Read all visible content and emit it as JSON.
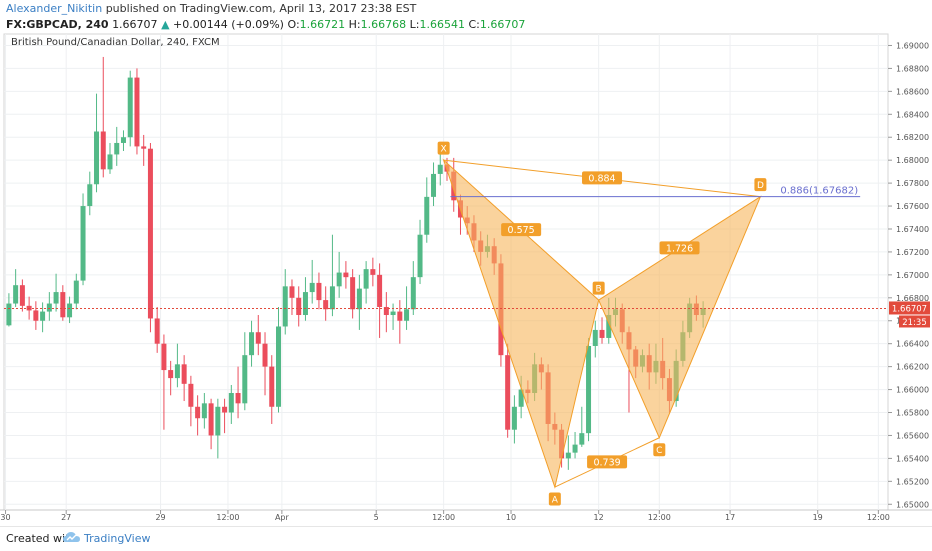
{
  "header": {
    "author": "Alexander_Nikitin",
    "published_text": "published on TradingView.com, April 13, 2017 23:38 EST",
    "symbol": "FX:GBPCAD, 240",
    "last": "1.66707",
    "change_arrow": "▲",
    "change": "+0.00144 (+0.09%)",
    "o_label": "O:",
    "o_value": "1.66721",
    "h_label": "H:",
    "h_value": "1.66768",
    "l_label": "L:",
    "l_value": "1.66541",
    "c_label": "C:",
    "c_value": "1.66707"
  },
  "footer": {
    "created_with": "Created with",
    "brand": "TradingView"
  },
  "colors": {
    "up": "#53b987",
    "down": "#eb4d5c",
    "pattern_fill": "#f7b55b",
    "pattern_stroke": "#f29f2a",
    "level_line": "#6a6fcf",
    "price_line": "#e24a3b"
  },
  "chart_data": {
    "type": "candlestick",
    "title": "British Pound/Canadian Dollar, 240, FXCM",
    "ylim": [
      1.6495,
      1.691
    ],
    "y_ticks": [
      "1.69000",
      "1.68800",
      "1.68600",
      "1.68400",
      "1.68200",
      "1.68000",
      "1.67800",
      "1.67600",
      "1.67400",
      "1.67200",
      "1.67000",
      "1.66800",
      "1.66600",
      "1.66400",
      "1.66200",
      "1.66000",
      "1.65800",
      "1.65600",
      "1.65400",
      "1.65200",
      "1.65000"
    ],
    "x_ticks": [
      {
        "label": "30",
        "i": -0.5
      },
      {
        "label": "27",
        "i": 8.5
      },
      {
        "label": "29",
        "i": 22.5
      },
      {
        "label": "12:00",
        "i": 32.5
      },
      {
        "label": "Apr",
        "i": 40.5
      },
      {
        "label": "5",
        "i": 54.5
      },
      {
        "label": "12:00",
        "i": 64.5
      },
      {
        "label": "10",
        "i": 74.5
      },
      {
        "label": "12",
        "i": 87.5
      },
      {
        "label": "12:00",
        "i": 96.5
      },
      {
        "label": "17",
        "i": 107
      },
      {
        "label": "19",
        "i": 120
      },
      {
        "label": "12:00",
        "i": 129
      }
    ],
    "candles": [
      [
        1.6656,
        1.6675,
        1.6655,
        1.6684
      ],
      [
        1.6675,
        1.6691,
        1.6672,
        1.6705
      ],
      [
        1.6691,
        1.6673,
        1.6668,
        1.6696
      ],
      [
        1.6673,
        1.6669,
        1.6661,
        1.6681
      ],
      [
        1.6669,
        1.666,
        1.6652,
        1.6677
      ],
      [
        1.666,
        1.6668,
        1.665,
        1.6676
      ],
      [
        1.6668,
        1.6675,
        1.666,
        1.6685
      ],
      [
        1.6675,
        1.6685,
        1.6668,
        1.6701
      ],
      [
        1.6685,
        1.6663,
        1.666,
        1.6691
      ],
      [
        1.6663,
        1.6675,
        1.6658,
        1.6681
      ],
      [
        1.6675,
        1.6695,
        1.667,
        1.6701
      ],
      [
        1.6695,
        1.676,
        1.6691,
        1.6771
      ],
      [
        1.676,
        1.6779,
        1.6752,
        1.679
      ],
      [
        1.6779,
        1.6825,
        1.6772,
        1.6858
      ],
      [
        1.6825,
        1.6792,
        1.6785,
        1.689
      ],
      [
        1.6792,
        1.6805,
        1.6788,
        1.6815
      ],
      [
        1.6805,
        1.6815,
        1.6795,
        1.6829
      ],
      [
        1.6815,
        1.682,
        1.6808,
        1.6826
      ],
      [
        1.682,
        1.6872,
        1.6812,
        1.6878
      ],
      [
        1.6872,
        1.6812,
        1.6805,
        1.688
      ],
      [
        1.6812,
        1.681,
        1.6795,
        1.6822
      ],
      [
        1.681,
        1.6662,
        1.665,
        1.6815
      ],
      [
        1.6662,
        1.664,
        1.6632,
        1.6672
      ],
      [
        1.664,
        1.6617,
        1.6565,
        1.6648
      ],
      [
        1.6617,
        1.661,
        1.6595,
        1.6625
      ],
      [
        1.661,
        1.6622,
        1.6602,
        1.664
      ],
      [
        1.6622,
        1.6605,
        1.659,
        1.663
      ],
      [
        1.6605,
        1.6585,
        1.6568,
        1.6612
      ],
      [
        1.6585,
        1.6575,
        1.656,
        1.6595
      ],
      [
        1.6575,
        1.6588,
        1.6566,
        1.6597
      ],
      [
        1.6588,
        1.656,
        1.6548,
        1.6592
      ],
      [
        1.656,
        1.6585,
        1.654,
        1.6592
      ],
      [
        1.6585,
        1.658,
        1.6562,
        1.6592
      ],
      [
        1.658,
        1.6597,
        1.657,
        1.6604
      ],
      [
        1.6597,
        1.6588,
        1.6575,
        1.662
      ],
      [
        1.6588,
        1.663,
        1.6582,
        1.665
      ],
      [
        1.663,
        1.665,
        1.662,
        1.666
      ],
      [
        1.665,
        1.664,
        1.663,
        1.6665
      ],
      [
        1.664,
        1.662,
        1.6595,
        1.665
      ],
      [
        1.662,
        1.6585,
        1.657,
        1.663
      ],
      [
        1.6585,
        1.6655,
        1.658,
        1.6672
      ],
      [
        1.6655,
        1.669,
        1.6648,
        1.6705
      ],
      [
        1.669,
        1.668,
        1.6665,
        1.6696
      ],
      [
        1.668,
        1.6665,
        1.6655,
        1.669
      ],
      [
        1.6665,
        1.6685,
        1.666,
        1.6698
      ],
      [
        1.6685,
        1.6693,
        1.6675,
        1.6713
      ],
      [
        1.6693,
        1.6678,
        1.667,
        1.6702
      ],
      [
        1.6678,
        1.667,
        1.666,
        1.669
      ],
      [
        1.667,
        1.669,
        1.6664,
        1.6735
      ],
      [
        1.669,
        1.6702,
        1.668,
        1.672
      ],
      [
        1.6702,
        1.6698,
        1.6688,
        1.6712
      ],
      [
        1.6698,
        1.667,
        1.6662,
        1.6705
      ],
      [
        1.667,
        1.6688,
        1.6652,
        1.67
      ],
      [
        1.6688,
        1.6705,
        1.6675,
        1.6712
      ],
      [
        1.6705,
        1.67,
        1.669,
        1.6715
      ],
      [
        1.67,
        1.6672,
        1.6645,
        1.671
      ],
      [
        1.6672,
        1.6665,
        1.665,
        1.6685
      ],
      [
        1.6665,
        1.6668,
        1.6652,
        1.6675
      ],
      [
        1.6668,
        1.666,
        1.664,
        1.6678
      ],
      [
        1.666,
        1.667,
        1.6652,
        1.669
      ],
      [
        1.667,
        1.6698,
        1.6665,
        1.6712
      ],
      [
        1.6698,
        1.6735,
        1.6692,
        1.6748
      ],
      [
        1.6735,
        1.6768,
        1.6728,
        1.6785
      ],
      [
        1.6768,
        1.6788,
        1.676,
        1.6798
      ],
      [
        1.6788,
        1.6796,
        1.6778,
        1.6808
      ],
      [
        1.6796,
        1.679,
        1.6782,
        1.6802
      ],
      [
        1.679,
        1.6765,
        1.6755,
        1.6802
      ],
      [
        1.6765,
        1.675,
        1.6735,
        1.677
      ],
      [
        1.675,
        1.6745,
        1.6735,
        1.676
      ],
      [
        1.6745,
        1.673,
        1.672,
        1.6752
      ],
      [
        1.673,
        1.672,
        1.6708,
        1.6738
      ],
      [
        1.672,
        1.6725,
        1.6715,
        1.6735
      ],
      [
        1.6725,
        1.671,
        1.67,
        1.6732
      ],
      [
        1.671,
        1.663,
        1.662,
        1.6718
      ],
      [
        1.663,
        1.6565,
        1.6558,
        1.664
      ],
      [
        1.6565,
        1.6585,
        1.6553,
        1.6595
      ],
      [
        1.6585,
        1.66,
        1.6575,
        1.6612
      ],
      [
        1.66,
        1.6597,
        1.6588,
        1.6608
      ],
      [
        1.6597,
        1.6622,
        1.659,
        1.6632
      ],
      [
        1.6622,
        1.6615,
        1.66,
        1.6628
      ],
      [
        1.6615,
        1.657,
        1.6555,
        1.6622
      ],
      [
        1.657,
        1.6565,
        1.6552,
        1.658
      ],
      [
        1.6565,
        1.654,
        1.6532,
        1.657
      ],
      [
        1.654,
        1.6545,
        1.653,
        1.656
      ],
      [
        1.6545,
        1.6552,
        1.654,
        1.6563
      ],
      [
        1.6552,
        1.6562,
        1.655,
        1.6585
      ],
      [
        1.6562,
        1.6638,
        1.6555,
        1.6645
      ],
      [
        1.6638,
        1.6652,
        1.6628,
        1.666
      ],
      [
        1.6652,
        1.6645,
        1.664,
        1.6663
      ],
      [
        1.6645,
        1.6665,
        1.664,
        1.668
      ],
      [
        1.6665,
        1.667,
        1.6655,
        1.668
      ],
      [
        1.667,
        1.665,
        1.664,
        1.6675
      ],
      [
        1.665,
        1.6635,
        1.658,
        1.6655
      ],
      [
        1.6635,
        1.662,
        1.661,
        1.6638
      ],
      [
        1.662,
        1.663,
        1.6615,
        1.6635
      ],
      [
        1.663,
        1.6615,
        1.66,
        1.664
      ],
      [
        1.6615,
        1.6625,
        1.6605,
        1.664
      ],
      [
        1.6625,
        1.661,
        1.66,
        1.6645
      ],
      [
        1.661,
        1.659,
        1.658,
        1.6618
      ],
      [
        1.659,
        1.6625,
        1.6585,
        1.6635
      ],
      [
        1.6625,
        1.665,
        1.662,
        1.666
      ],
      [
        1.665,
        1.6675,
        1.6645,
        1.668
      ],
      [
        1.6675,
        1.6665,
        1.666,
        1.6682
      ],
      [
        1.6665,
        1.6671,
        1.6654,
        1.6677
      ]
    ],
    "pattern": {
      "points": [
        {
          "label": "X",
          "i": 64.5,
          "y": 1.68
        },
        {
          "label": "A",
          "i": 81,
          "y": 1.6515
        },
        {
          "label": "B",
          "i": 87.5,
          "y": 1.6678
        },
        {
          "label": "C",
          "i": 96.5,
          "y": 1.6558
        },
        {
          "label": "D",
          "i": 111.5,
          "y": 1.67682
        }
      ],
      "ratios": [
        {
          "text": "0.884",
          "between": [
            "X",
            "D"
          ]
        },
        {
          "text": "0.575",
          "between": [
            "X",
            "B"
          ]
        },
        {
          "text": "1.726",
          "between": [
            "B",
            "D"
          ]
        },
        {
          "text": "0.739",
          "between": [
            "A",
            "C"
          ]
        }
      ],
      "level": {
        "label": "0.886(1.67682)",
        "value": 1.67682,
        "start_i": 65.5,
        "end_i": 126.3
      }
    },
    "last_price": {
      "value": 1.66707,
      "label": "1.66707",
      "countdown": "21:35"
    }
  }
}
